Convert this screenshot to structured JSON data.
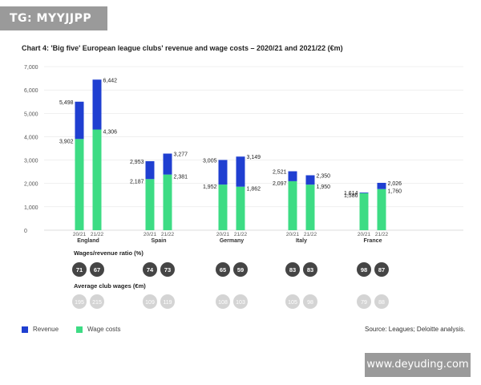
{
  "watermarks": {
    "top": "TG: MYYJJPP",
    "bottom": "www.deyuding.com"
  },
  "chart_data": {
    "type": "bar",
    "title": "Chart 4: 'Big five' European league clubs' revenue and wage costs – 2020/21 and 2021/22 (€m)",
    "stacked": true,
    "ylim": [
      0,
      7000
    ],
    "yticks": [
      "0",
      "1,000",
      "2,000",
      "3,000",
      "4,000",
      "5,000",
      "6,000",
      "7,000"
    ],
    "grid": true,
    "legend_position": "bottom-left",
    "colors": {
      "revenue": "#1f3fd1",
      "wage": "#3ddc84",
      "ratio_circle": "#454545",
      "wages_circle": "#d4d4d4"
    },
    "season_labels": [
      "20/21",
      "21/22"
    ],
    "groups": [
      {
        "country": "England",
        "bars": [
          {
            "season": "20/21",
            "revenue": 5498,
            "wages": 3902,
            "revenue_label": "5,498",
            "wages_label": "3,902",
            "ratio": "71",
            "avg_wages": "195"
          },
          {
            "season": "21/22",
            "revenue": 6442,
            "wages": 4306,
            "revenue_label": "6,442",
            "wages_label": "4,306",
            "ratio": "67",
            "avg_wages": "215"
          }
        ]
      },
      {
        "country": "Spain",
        "bars": [
          {
            "season": "20/21",
            "revenue": 2953,
            "wages": 2187,
            "revenue_label": "2,953",
            "wages_label": "2,187",
            "ratio": "74",
            "avg_wages": "109"
          },
          {
            "season": "21/22",
            "revenue": 3277,
            "wages": 2381,
            "revenue_label": "3,277",
            "wages_label": "2,381",
            "ratio": "73",
            "avg_wages": "119"
          }
        ]
      },
      {
        "country": "Germany",
        "bars": [
          {
            "season": "20/21",
            "revenue": 3005,
            "wages": 1952,
            "revenue_label": "3,005",
            "wages_label": "1,952",
            "ratio": "65",
            "avg_wages": "108"
          },
          {
            "season": "21/22",
            "revenue": 3149,
            "wages": 1862,
            "revenue_label": "3,149",
            "wages_label": "1,862",
            "ratio": "59",
            "avg_wages": "103"
          }
        ]
      },
      {
        "country": "Italy",
        "bars": [
          {
            "season": "20/21",
            "revenue": 2521,
            "wages": 2097,
            "revenue_label": "2,521",
            "wages_label": "2,097",
            "ratio": "83",
            "avg_wages": "105"
          },
          {
            "season": "21/22",
            "revenue": 2350,
            "wages": 1950,
            "revenue_label": "2,350",
            "wages_label": "1,950",
            "ratio": "83",
            "avg_wages": "98"
          }
        ]
      },
      {
        "country": "France",
        "bars": [
          {
            "season": "20/21",
            "revenue": 1614,
            "wages": 1586,
            "revenue_label": "1,614",
            "wages_label": "1,586",
            "ratio": "98",
            "avg_wages": "79"
          },
          {
            "season": "21/22",
            "revenue": 2026,
            "wages": 1760,
            "revenue_label": "2,026",
            "wages_label": "1,760",
            "ratio": "87",
            "avg_wages": "88"
          }
        ]
      }
    ],
    "ratio_row_label": "Wages/revenue ratio (%)",
    "avg_wages_row_label": "Average club wages (€m)",
    "legend": [
      {
        "name": "Revenue",
        "color": "#1f3fd1"
      },
      {
        "name": "Wage costs",
        "color": "#3ddc84"
      }
    ],
    "source": "Source: Leagues; Deloitte analysis."
  }
}
